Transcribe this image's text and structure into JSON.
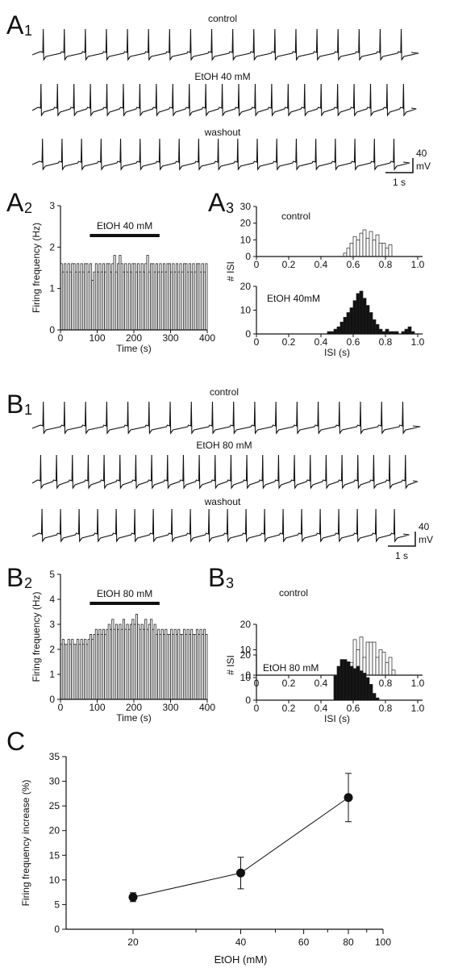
{
  "labels": {
    "A1": "A",
    "A1_sub": "1",
    "A2": "A",
    "A2_sub": "2",
    "A3": "A",
    "A3_sub": "3",
    "B1": "B",
    "B1_sub": "1",
    "B2": "B",
    "B2_sub": "2",
    "B3": "B",
    "B3_sub": "3",
    "C": "C"
  },
  "chart_data": [
    {
      "id": "A1",
      "type": "line",
      "traces": [
        {
          "label": "control",
          "spikes": 18
        },
        {
          "label": "EtOH 40 mM",
          "spikes": 23
        },
        {
          "label": "washout",
          "spikes": 19
        }
      ],
      "scalebar": {
        "voltage": "40",
        "voltage_unit": "mV",
        "time": "1 s"
      }
    },
    {
      "id": "A2",
      "type": "bar",
      "ylabel": "Firing frequency (Hz)",
      "xlabel": "Time (s)",
      "xlim": [
        0,
        400
      ],
      "ylim": [
        0,
        3
      ],
      "xticks": [
        0,
        100,
        200,
        300,
        400
      ],
      "yticks": [
        0,
        1,
        2,
        3
      ],
      "annotation": {
        "label": "EtOH 40 mM",
        "from": 80,
        "to": 270
      },
      "bin_width": 5,
      "values": [
        1.6,
        1.4,
        1.6,
        1.4,
        1.6,
        1.4,
        1.6,
        1.6,
        1.4,
        1.6,
        1.4,
        1.6,
        1.4,
        1.6,
        1.6,
        1.4,
        1.6,
        1.2,
        1.4,
        1.6,
        1.4,
        1.6,
        1.4,
        1.6,
        1.4,
        1.6,
        1.6,
        1.4,
        1.6,
        1.8,
        1.4,
        1.6,
        1.8,
        1.6,
        1.4,
        1.6,
        1.4,
        1.6,
        1.4,
        1.6,
        1.6,
        1.4,
        1.6,
        1.4,
        1.6,
        1.4,
        1.6,
        1.8,
        1.4,
        1.6,
        1.6,
        1.4,
        1.6,
        1.4,
        1.6,
        1.4,
        1.6,
        1.4,
        1.6,
        1.6,
        1.4,
        1.6,
        1.4,
        1.6,
        1.4,
        1.6,
        1.4,
        1.6,
        1.6,
        1.4,
        1.6,
        1.4,
        1.6,
        1.4,
        1.6,
        1.6,
        1.4,
        1.6,
        1.4,
        1.6
      ]
    },
    {
      "id": "A3",
      "type": "bar",
      "xlabel": "ISI (s)",
      "ylabel": "# ISI",
      "xticks": [
        0,
        0.2,
        0.4,
        0.6,
        0.8,
        1.0
      ],
      "xtick_labels": [
        "0",
        "0.2",
        "0.4",
        "0.6",
        "0.8",
        "1.0"
      ],
      "panels": [
        {
          "label": "control",
          "fill": "#ffffff",
          "ylim": [
            0,
            30
          ],
          "yticks": [
            0,
            10,
            20,
            30
          ],
          "bin_width": 0.02,
          "bins": [
            0.55,
            0.57,
            0.59,
            0.61,
            0.63,
            0.65,
            0.67,
            0.69,
            0.71,
            0.73,
            0.75,
            0.77,
            0.79,
            0.81,
            0.83
          ],
          "values": [
            2,
            5,
            8,
            12,
            10,
            14,
            16,
            11,
            15,
            10,
            13,
            8,
            8,
            5,
            7
          ]
        },
        {
          "label": "EtOH 40mM",
          "fill": "#111111",
          "ylim": [
            0,
            20
          ],
          "yticks": [
            0,
            10,
            20
          ],
          "bin_width": 0.02,
          "bins": [
            0.45,
            0.47,
            0.49,
            0.51,
            0.53,
            0.55,
            0.57,
            0.59,
            0.61,
            0.63,
            0.65,
            0.67,
            0.69,
            0.71,
            0.73,
            0.75,
            0.77,
            0.79,
            0.81,
            0.83,
            0.85,
            0.87,
            0.89,
            0.91,
            0.93,
            0.95,
            0.97
          ],
          "values": [
            1,
            1,
            2,
            3,
            5,
            7,
            9,
            11,
            14,
            17,
            18,
            15,
            12,
            9,
            6,
            4,
            2,
            1,
            2,
            1,
            1,
            1,
            0,
            1,
            2,
            3,
            1
          ]
        }
      ]
    },
    {
      "id": "B1",
      "type": "line",
      "traces": [
        {
          "label": "control",
          "spikes": 18
        },
        {
          "label": "EtOH 80 mM",
          "spikes": 24
        },
        {
          "label": "washout",
          "spikes": 20
        }
      ],
      "scalebar": {
        "voltage": "40",
        "voltage_unit": "mV",
        "time": "1 s"
      }
    },
    {
      "id": "B2",
      "type": "bar",
      "ylabel": "Firing frequency (Hz)",
      "xlabel": "Time (s)",
      "xlim": [
        0,
        400
      ],
      "ylim": [
        0,
        5
      ],
      "xticks": [
        0,
        100,
        200,
        300,
        400
      ],
      "yticks": [
        0,
        1,
        2,
        3,
        4,
        5
      ],
      "annotation": {
        "label": "EtOH 80 mM",
        "from": 80,
        "to": 270
      },
      "bin_width": 5,
      "values": [
        2.2,
        2.4,
        2.2,
        2.2,
        2.4,
        2.2,
        2.4,
        2.2,
        2.2,
        2.4,
        2.2,
        2.4,
        2.2,
        2.4,
        2.2,
        2.4,
        2.6,
        2.4,
        2.6,
        2.8,
        2.6,
        2.8,
        2.6,
        2.8,
        2.6,
        2.8,
        3.0,
        2.8,
        3.2,
        2.8,
        3.0,
        2.8,
        3.0,
        2.8,
        3.2,
        2.8,
        3.0,
        2.8,
        3.0,
        3.2,
        3.0,
        3.4,
        3.0,
        2.8,
        3.0,
        2.8,
        3.2,
        2.8,
        3.0,
        3.2,
        2.8,
        3.0,
        2.6,
        2.8,
        2.6,
        2.8,
        2.6,
        2.8,
        2.6,
        2.6,
        2.8,
        2.6,
        2.8,
        2.6,
        2.8,
        2.6,
        2.6,
        2.8,
        2.6,
        2.8,
        2.6,
        2.8,
        2.6,
        2.6,
        2.8,
        2.6,
        2.8,
        2.6,
        2.8,
        2.6
      ]
    },
    {
      "id": "B3",
      "type": "bar",
      "xlabel": "ISI (s)",
      "ylabel": "# ISI",
      "xticks": [
        0,
        0.2,
        0.4,
        0.6,
        0.8,
        1.0
      ],
      "xtick_labels": [
        "0",
        "0.2",
        "0.4",
        "0.6",
        "0.8",
        "1.0"
      ],
      "panels": [
        {
          "label": "control",
          "fill": "#ffffff",
          "ylim": [
            0,
            20
          ],
          "yticks": [
            0,
            10,
            20
          ],
          "bin_width": 0.02,
          "bins": [
            0.59,
            0.61,
            0.63,
            0.65,
            0.67,
            0.69,
            0.71,
            0.73,
            0.75,
            0.77,
            0.79,
            0.81,
            0.83,
            0.85
          ],
          "values": [
            5,
            14,
            10,
            15,
            7,
            13,
            13,
            13,
            7,
            10,
            9,
            5,
            7,
            2
          ]
        },
        {
          "label": "EtOH 80 mM",
          "fill": "#111111",
          "ylim": [
            0,
            20
          ],
          "yticks": [
            0,
            10,
            20
          ],
          "bin_width": 0.02,
          "bins": [
            0.49,
            0.51,
            0.53,
            0.55,
            0.57,
            0.59,
            0.61,
            0.63,
            0.65,
            0.67,
            0.69,
            0.71,
            0.73,
            0.75
          ],
          "values": [
            11,
            15,
            18,
            18,
            17,
            15,
            14,
            15,
            13,
            12,
            10,
            7,
            3,
            1
          ]
        }
      ]
    },
    {
      "id": "C",
      "type": "scatter",
      "xlabel": "EtOH (mM)",
      "ylabel": "Firing frequency increase (%)",
      "xscale": "log",
      "ylim": [
        0,
        35
      ],
      "yticks": [
        0,
        5,
        10,
        15,
        20,
        25,
        30,
        35
      ],
      "xticks": [
        20,
        40,
        60,
        80,
        100
      ],
      "minor_xticks": [
        30,
        50,
        70,
        90
      ],
      "x": [
        20,
        40,
        80
      ],
      "y": [
        6.5,
        11.4,
        26.7
      ],
      "yerr": [
        0.9,
        3.2,
        4.9
      ],
      "connected": true
    }
  ]
}
